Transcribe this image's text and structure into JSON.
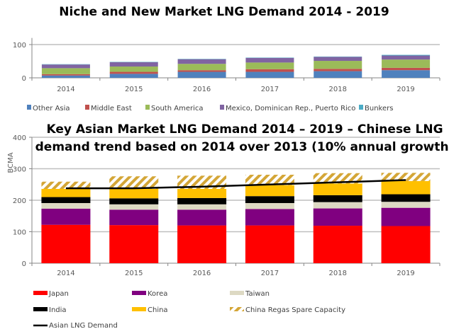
{
  "chart_data": [
    {
      "type": "bar",
      "stacked": true,
      "title": "Niche and New Market LNG Demand 2014 - 2019",
      "categories": [
        "2014",
        "2015",
        "2016",
        "2017",
        "2018",
        "2019"
      ],
      "ylim": [
        0,
        120
      ],
      "yticks": [
        "0",
        "100"
      ],
      "grid": true,
      "legend_placement": "bottom",
      "series": [
        {
          "name": "Other Asia",
          "color": "#4f81bd",
          "values": [
            7,
            12,
            18,
            18,
            20,
            23
          ]
        },
        {
          "name": "Middle East",
          "color": "#c0504d",
          "values": [
            4,
            6,
            5,
            8,
            7,
            7
          ]
        },
        {
          "name": "South America",
          "color": "#9bbb59",
          "values": [
            18,
            16,
            19,
            20,
            24,
            25
          ]
        },
        {
          "name": "Mexico, Dominican Rep., Puerto Rico",
          "color": "#8064a2",
          "values": [
            11,
            13,
            14,
            14,
            12,
            12
          ]
        },
        {
          "name": "Bunkers",
          "color": "#4bacc6",
          "values": [
            1,
            1,
            1,
            1,
            1,
            2
          ]
        }
      ]
    },
    {
      "type": "bar",
      "stacked": true,
      "title_lines": [
        "Key Asian Market LNG Demand 2014 – 2019 – Chinese LNG",
        "demand trend based on 2014 over 2013 (10% annual growth)"
      ],
      "ylabel": "BCMA",
      "categories": [
        "2014",
        "2015",
        "2016",
        "2017",
        "2018",
        "2019"
      ],
      "ylim": [
        0,
        400
      ],
      "yticks": [
        "0",
        "100",
        "200",
        "300",
        "400"
      ],
      "grid": true,
      "legend_placement": "bottom",
      "series": [
        {
          "name": "Japan",
          "color": "#ff0000",
          "values": [
            122,
            121,
            120,
            120,
            119,
            118
          ]
        },
        {
          "name": "Korea",
          "color": "#800080",
          "values": [
            51,
            49,
            50,
            52,
            55,
            58
          ]
        },
        {
          "name": "Taiwan",
          "color": "#ddd9c3",
          "values": [
            18,
            17,
            17,
            19,
            20,
            19
          ]
        },
        {
          "name": "India",
          "color": "#000000",
          "values": [
            19,
            19,
            20,
            22,
            22,
            24
          ]
        },
        {
          "name": "China",
          "color": "#ffc000",
          "values": [
            26,
            30,
            29,
            35,
            37,
            42
          ]
        },
        {
          "name": "China Regas Spare Capacity",
          "color": "#d4a017",
          "pattern": "hatched",
          "values": [
            23,
            40,
            42,
            33,
            33,
            26
          ]
        }
      ],
      "line_series": {
        "name": "Asian LNG Demand",
        "color": "#000000",
        "values": [
          238,
          238,
          243,
          250,
          257,
          264
        ]
      }
    }
  ]
}
